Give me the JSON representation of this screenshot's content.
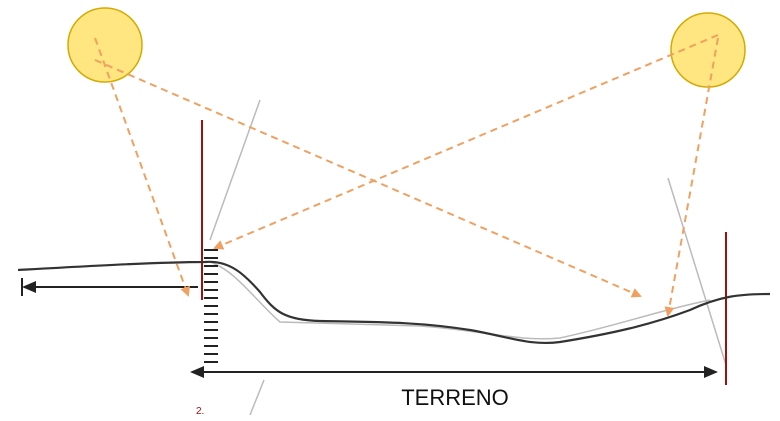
{
  "labels": {
    "terreno": "TERRENO",
    "marker": "2."
  }
}
